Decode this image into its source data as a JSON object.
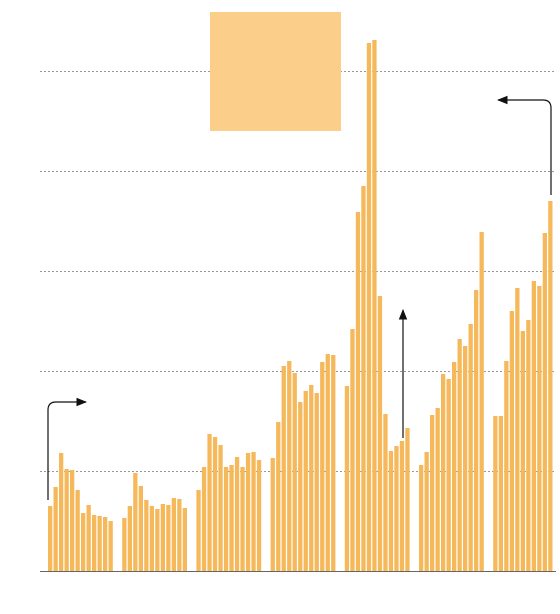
{
  "chart_data": {
    "type": "bar",
    "color": "#f5b95c",
    "values": [
      0.65,
      0.84,
      1.18,
      1.02,
      1.01,
      0.81,
      0.58,
      0.66,
      0.56,
      0.55,
      0.54,
      0.5,
      0.53,
      0.65,
      0.98,
      0.85,
      0.71,
      0.65,
      0.62,
      0.67,
      0.66,
      0.73,
      0.72,
      0.63,
      0.81,
      1.04,
      1.37,
      1.34,
      1.26,
      1.04,
      1.06,
      1.14,
      1.04,
      1.18,
      1.19,
      1.11,
      1.13,
      1.49,
      2.05,
      2.1,
      1.98,
      1.69,
      1.8,
      1.86,
      1.78,
      2.09,
      2.17,
      2.16,
      1.85,
      2.42,
      3.59,
      3.85,
      5.28,
      5.31,
      2.75,
      1.57,
      1.2,
      1.25,
      1.3,
      1.43,
      1.06,
      1.19,
      1.56,
      1.63,
      1.97,
      1.92,
      2.09,
      2.32,
      2.25,
      2.47,
      2.81,
      3.39,
      1.55,
      1.55,
      2.1,
      2.6,
      2.83,
      2.4,
      2.51,
      2.9,
      2.85,
      3.38,
      3.7
    ],
    "ylim": [
      0,
      5.5
    ],
    "yticks": [
      1,
      2,
      3,
      4,
      5
    ],
    "grid": true
  }
}
